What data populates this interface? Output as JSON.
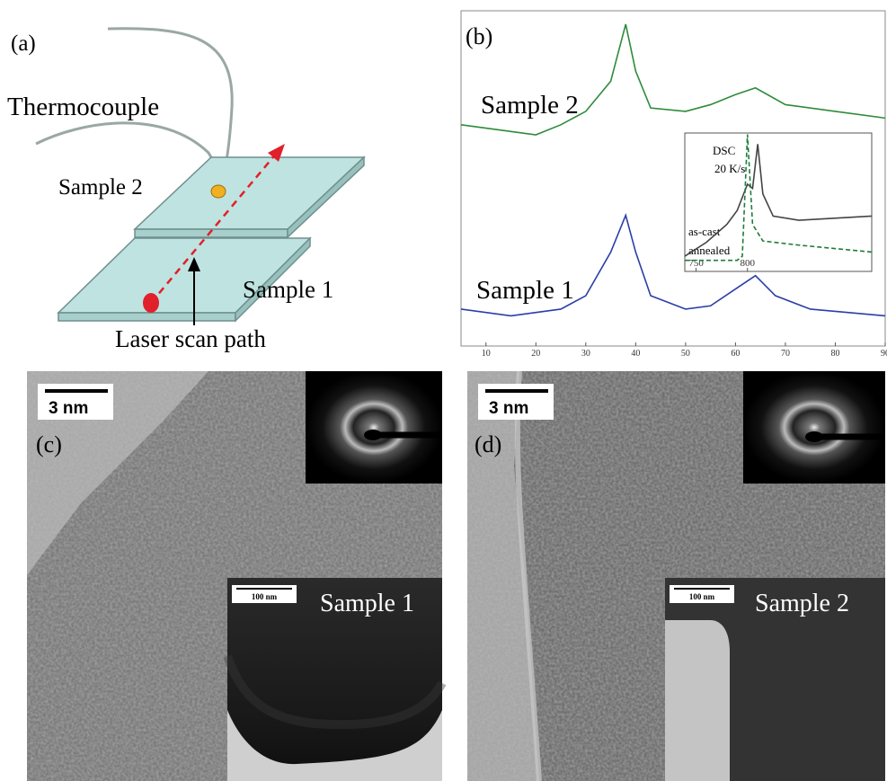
{
  "panel_a": {
    "label": "(a)",
    "thermocouple": "Thermocouple",
    "sample_2": "Sample 2",
    "sample_1": "Sample 1",
    "scan_path": "Laser scan path"
  },
  "chart_data": {
    "type": "line",
    "label": "(b)",
    "xlim": [
      5,
      90
    ],
    "xticks": [
      10,
      20,
      30,
      40,
      50,
      60,
      70,
      80,
      90
    ],
    "ylim": [
      0,
      100
    ],
    "series": [
      {
        "name": "Sample 2",
        "color": "#2e8b3a",
        "x": [
          5,
          15,
          20,
          25,
          30,
          35,
          38,
          40,
          43,
          50,
          55,
          60,
          64,
          70,
          80,
          90
        ],
        "values": [
          66,
          64,
          63,
          66,
          70,
          79,
          96,
          82,
          71,
          70,
          72,
          75,
          77,
          72,
          70,
          68
        ]
      },
      {
        "name": "Sample 1",
        "color": "#2b3ea8",
        "x": [
          5,
          15,
          25,
          30,
          35,
          38,
          40,
          43,
          50,
          55,
          60,
          64,
          68,
          75,
          90
        ],
        "values": [
          11,
          9,
          11,
          15,
          28,
          39,
          28,
          15,
          11,
          12,
          17,
          21,
          15,
          11,
          9
        ]
      }
    ],
    "inset": {
      "type": "line",
      "title": "DSC",
      "subtitle": "20 K/s",
      "xlim": [
        739,
        921
      ],
      "xticks": [
        750,
        800
      ],
      "ylim": [
        0,
        100
      ],
      "series": [
        {
          "name": "as-cast",
          "color": "#444444",
          "dash": false,
          "x": [
            739,
            760,
            780,
            790,
            800,
            805,
            810,
            815,
            825,
            850,
            921
          ],
          "values": [
            11,
            21,
            34,
            44,
            63,
            60,
            92,
            56,
            40,
            37,
            40
          ]
        },
        {
          "name": "annealed",
          "color": "#1e7d3a",
          "dash": true,
          "x": [
            739,
            790,
            795,
            800,
            805,
            815,
            850,
            921
          ],
          "values": [
            8,
            8,
            11,
            99,
            34,
            22,
            19,
            14
          ]
        }
      ]
    }
  },
  "panel_c": {
    "label": "(c)",
    "scale_bar": "3 nm",
    "inset_scale_bar": "100 nm",
    "sample": "Sample 1"
  },
  "panel_d": {
    "label": "(d)",
    "scale_bar": "3 nm",
    "inset_scale_bar": "100 nm",
    "sample": "Sample 2"
  }
}
